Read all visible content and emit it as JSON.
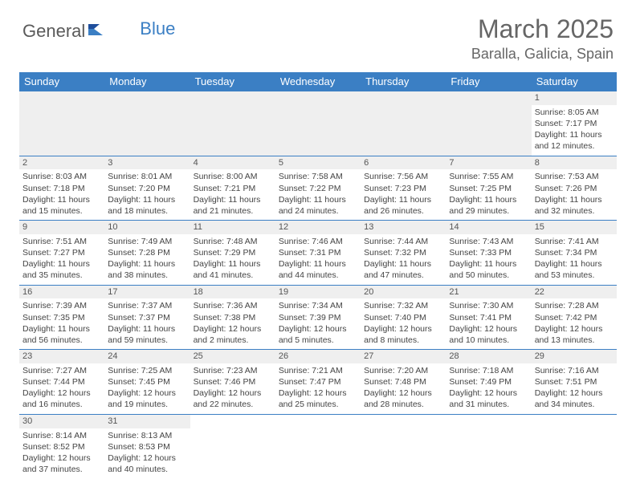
{
  "logo": {
    "general": "General",
    "blue": "Blue"
  },
  "title": "March 2025",
  "location": "Baralla, Galicia, Spain",
  "colors": {
    "header_bg": "#3b7fc4",
    "header_text": "#ffffff",
    "daynum_bg": "#efefef",
    "border": "#3b7fc4",
    "text": "#444444",
    "title_text": "#666666"
  },
  "weekdays": [
    "Sunday",
    "Monday",
    "Tuesday",
    "Wednesday",
    "Thursday",
    "Friday",
    "Saturday"
  ],
  "weeks": [
    [
      null,
      null,
      null,
      null,
      null,
      null,
      {
        "n": "1",
        "sr": "Sunrise: 8:05 AM",
        "ss": "Sunset: 7:17 PM",
        "d1": "Daylight: 11 hours",
        "d2": "and 12 minutes."
      }
    ],
    [
      {
        "n": "2",
        "sr": "Sunrise: 8:03 AM",
        "ss": "Sunset: 7:18 PM",
        "d1": "Daylight: 11 hours",
        "d2": "and 15 minutes."
      },
      {
        "n": "3",
        "sr": "Sunrise: 8:01 AM",
        "ss": "Sunset: 7:20 PM",
        "d1": "Daylight: 11 hours",
        "d2": "and 18 minutes."
      },
      {
        "n": "4",
        "sr": "Sunrise: 8:00 AM",
        "ss": "Sunset: 7:21 PM",
        "d1": "Daylight: 11 hours",
        "d2": "and 21 minutes."
      },
      {
        "n": "5",
        "sr": "Sunrise: 7:58 AM",
        "ss": "Sunset: 7:22 PM",
        "d1": "Daylight: 11 hours",
        "d2": "and 24 minutes."
      },
      {
        "n": "6",
        "sr": "Sunrise: 7:56 AM",
        "ss": "Sunset: 7:23 PM",
        "d1": "Daylight: 11 hours",
        "d2": "and 26 minutes."
      },
      {
        "n": "7",
        "sr": "Sunrise: 7:55 AM",
        "ss": "Sunset: 7:25 PM",
        "d1": "Daylight: 11 hours",
        "d2": "and 29 minutes."
      },
      {
        "n": "8",
        "sr": "Sunrise: 7:53 AM",
        "ss": "Sunset: 7:26 PM",
        "d1": "Daylight: 11 hours",
        "d2": "and 32 minutes."
      }
    ],
    [
      {
        "n": "9",
        "sr": "Sunrise: 7:51 AM",
        "ss": "Sunset: 7:27 PM",
        "d1": "Daylight: 11 hours",
        "d2": "and 35 minutes."
      },
      {
        "n": "10",
        "sr": "Sunrise: 7:49 AM",
        "ss": "Sunset: 7:28 PM",
        "d1": "Daylight: 11 hours",
        "d2": "and 38 minutes."
      },
      {
        "n": "11",
        "sr": "Sunrise: 7:48 AM",
        "ss": "Sunset: 7:29 PM",
        "d1": "Daylight: 11 hours",
        "d2": "and 41 minutes."
      },
      {
        "n": "12",
        "sr": "Sunrise: 7:46 AM",
        "ss": "Sunset: 7:31 PM",
        "d1": "Daylight: 11 hours",
        "d2": "and 44 minutes."
      },
      {
        "n": "13",
        "sr": "Sunrise: 7:44 AM",
        "ss": "Sunset: 7:32 PM",
        "d1": "Daylight: 11 hours",
        "d2": "and 47 minutes."
      },
      {
        "n": "14",
        "sr": "Sunrise: 7:43 AM",
        "ss": "Sunset: 7:33 PM",
        "d1": "Daylight: 11 hours",
        "d2": "and 50 minutes."
      },
      {
        "n": "15",
        "sr": "Sunrise: 7:41 AM",
        "ss": "Sunset: 7:34 PM",
        "d1": "Daylight: 11 hours",
        "d2": "and 53 minutes."
      }
    ],
    [
      {
        "n": "16",
        "sr": "Sunrise: 7:39 AM",
        "ss": "Sunset: 7:35 PM",
        "d1": "Daylight: 11 hours",
        "d2": "and 56 minutes."
      },
      {
        "n": "17",
        "sr": "Sunrise: 7:37 AM",
        "ss": "Sunset: 7:37 PM",
        "d1": "Daylight: 11 hours",
        "d2": "and 59 minutes."
      },
      {
        "n": "18",
        "sr": "Sunrise: 7:36 AM",
        "ss": "Sunset: 7:38 PM",
        "d1": "Daylight: 12 hours",
        "d2": "and 2 minutes."
      },
      {
        "n": "19",
        "sr": "Sunrise: 7:34 AM",
        "ss": "Sunset: 7:39 PM",
        "d1": "Daylight: 12 hours",
        "d2": "and 5 minutes."
      },
      {
        "n": "20",
        "sr": "Sunrise: 7:32 AM",
        "ss": "Sunset: 7:40 PM",
        "d1": "Daylight: 12 hours",
        "d2": "and 8 minutes."
      },
      {
        "n": "21",
        "sr": "Sunrise: 7:30 AM",
        "ss": "Sunset: 7:41 PM",
        "d1": "Daylight: 12 hours",
        "d2": "and 10 minutes."
      },
      {
        "n": "22",
        "sr": "Sunrise: 7:28 AM",
        "ss": "Sunset: 7:42 PM",
        "d1": "Daylight: 12 hours",
        "d2": "and 13 minutes."
      }
    ],
    [
      {
        "n": "23",
        "sr": "Sunrise: 7:27 AM",
        "ss": "Sunset: 7:44 PM",
        "d1": "Daylight: 12 hours",
        "d2": "and 16 minutes."
      },
      {
        "n": "24",
        "sr": "Sunrise: 7:25 AM",
        "ss": "Sunset: 7:45 PM",
        "d1": "Daylight: 12 hours",
        "d2": "and 19 minutes."
      },
      {
        "n": "25",
        "sr": "Sunrise: 7:23 AM",
        "ss": "Sunset: 7:46 PM",
        "d1": "Daylight: 12 hours",
        "d2": "and 22 minutes."
      },
      {
        "n": "26",
        "sr": "Sunrise: 7:21 AM",
        "ss": "Sunset: 7:47 PM",
        "d1": "Daylight: 12 hours",
        "d2": "and 25 minutes."
      },
      {
        "n": "27",
        "sr": "Sunrise: 7:20 AM",
        "ss": "Sunset: 7:48 PM",
        "d1": "Daylight: 12 hours",
        "d2": "and 28 minutes."
      },
      {
        "n": "28",
        "sr": "Sunrise: 7:18 AM",
        "ss": "Sunset: 7:49 PM",
        "d1": "Daylight: 12 hours",
        "d2": "and 31 minutes."
      },
      {
        "n": "29",
        "sr": "Sunrise: 7:16 AM",
        "ss": "Sunset: 7:51 PM",
        "d1": "Daylight: 12 hours",
        "d2": "and 34 minutes."
      }
    ],
    [
      {
        "n": "30",
        "sr": "Sunrise: 8:14 AM",
        "ss": "Sunset: 8:52 PM",
        "d1": "Daylight: 12 hours",
        "d2": "and 37 minutes."
      },
      {
        "n": "31",
        "sr": "Sunrise: 8:13 AM",
        "ss": "Sunset: 8:53 PM",
        "d1": "Daylight: 12 hours",
        "d2": "and 40 minutes."
      },
      null,
      null,
      null,
      null,
      null
    ]
  ]
}
